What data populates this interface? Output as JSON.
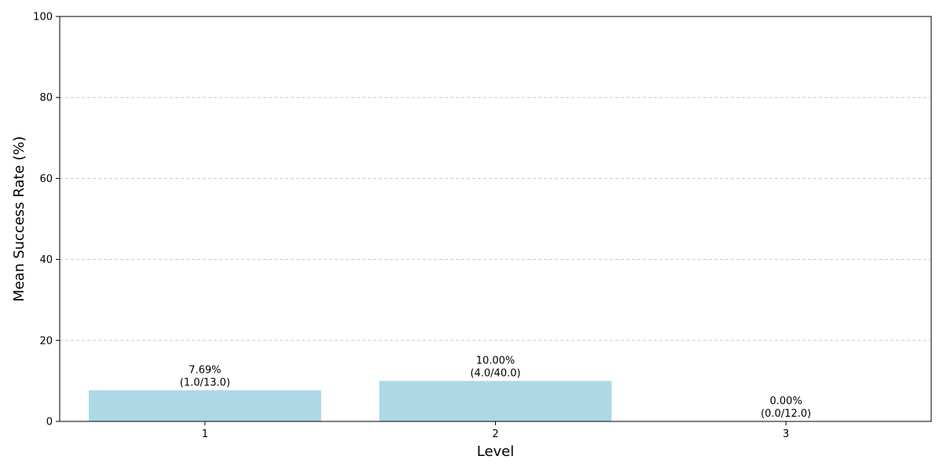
{
  "chart_data": {
    "type": "bar",
    "title": "",
    "xlabel": "Level",
    "ylabel": "Mean Success Rate (%)",
    "categories": [
      "1",
      "2",
      "3"
    ],
    "values": [
      7.69,
      10.0,
      0.0
    ],
    "bar_labels": [
      [
        "7.69%",
        "(1.0/13.0)"
      ],
      [
        "10.00%",
        "(4.0/40.0)"
      ],
      [
        "0.00%",
        "(0.0/12.0)"
      ]
    ],
    "ylim": [
      0,
      100
    ],
    "yticks": [
      0,
      20,
      40,
      60,
      80,
      100
    ],
    "grid": "y-dashed",
    "bar_color": "#add8e6",
    "grid_color": "#c8c8c8"
  }
}
